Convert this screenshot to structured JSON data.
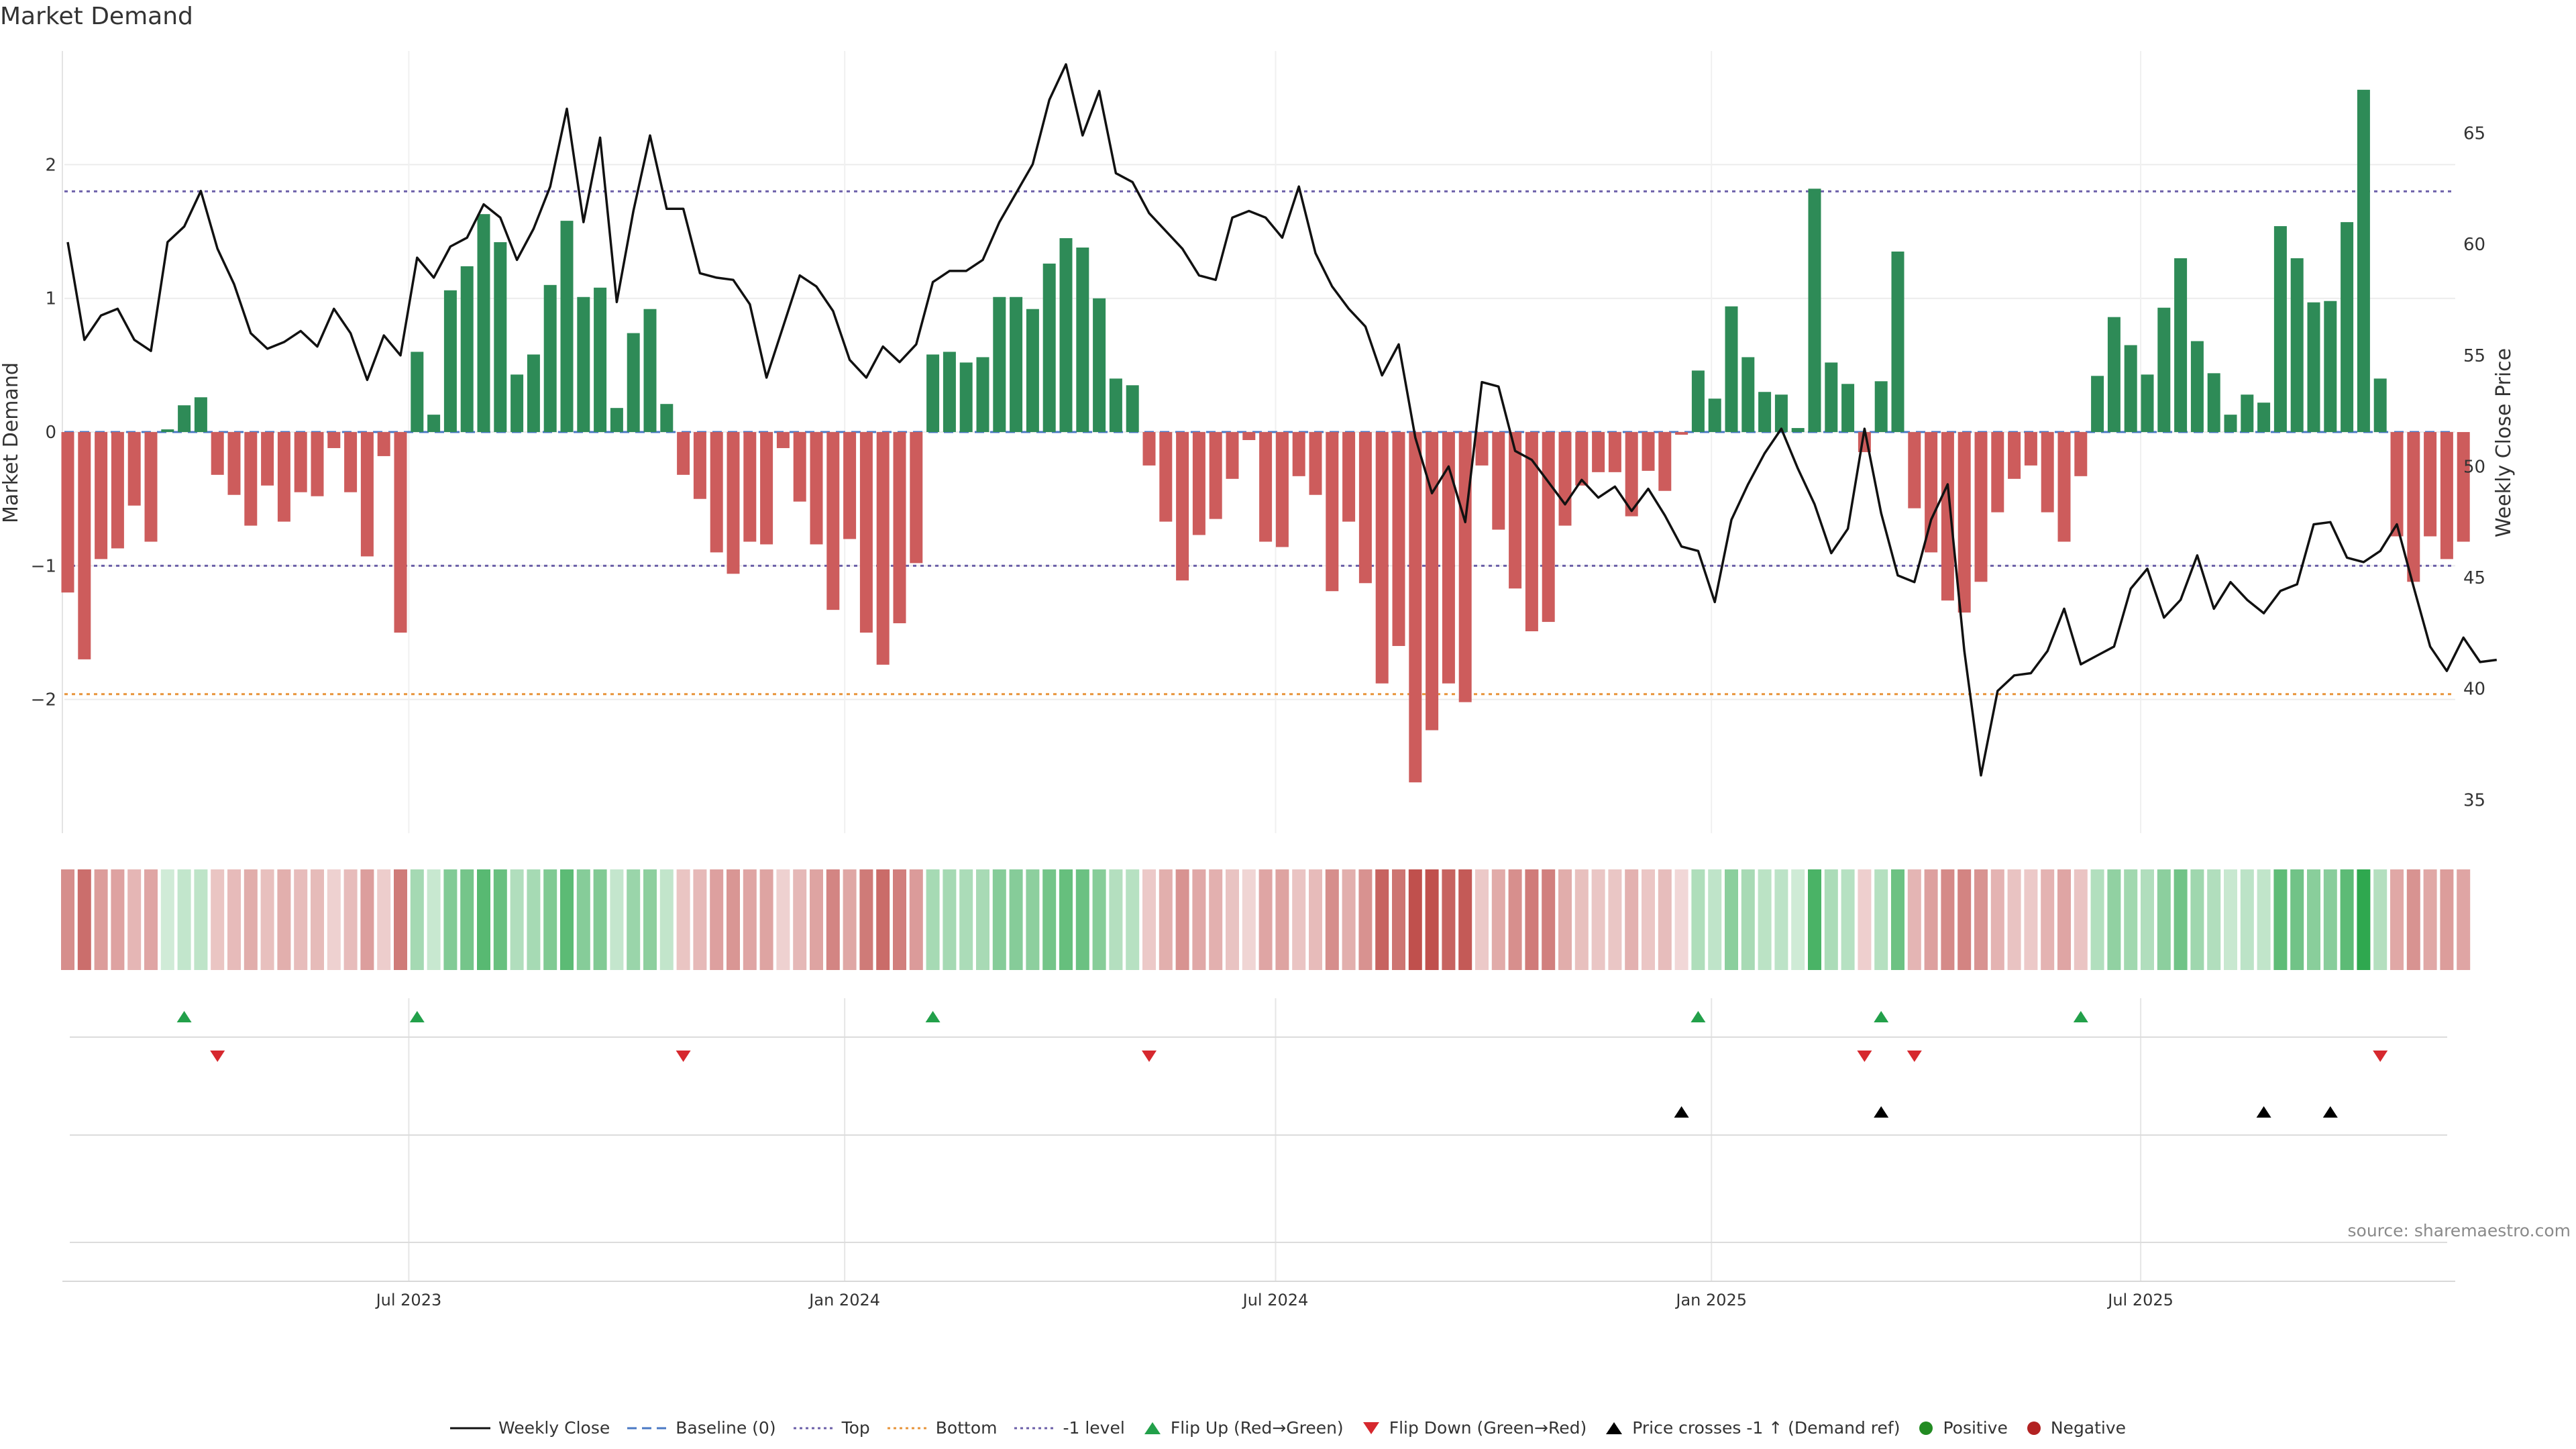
{
  "chart_data": {
    "type": "bar",
    "title": "Market Demand",
    "ylabel_left": "Market Demand",
    "ylabel_right": "Weekly Close Price",
    "y_left_range": [
      -3.0,
      2.85
    ],
    "y_left_ticks": [
      {
        "v": 2,
        "label": "2"
      },
      {
        "v": 1,
        "label": "1"
      },
      {
        "v": 0,
        "label": "0"
      },
      {
        "v": -1,
        "label": "−1"
      },
      {
        "v": -2,
        "label": "−2"
      }
    ],
    "y_right_range": [
      33.5,
      68.7
    ],
    "y_right_ticks": [
      {
        "v": 65,
        "label": "65"
      },
      {
        "v": 60,
        "label": "60"
      },
      {
        "v": 55,
        "label": "55"
      },
      {
        "v": 50,
        "label": "50"
      },
      {
        "v": 45,
        "label": "45"
      },
      {
        "v": 40,
        "label": "40"
      },
      {
        "v": 35,
        "label": "35"
      }
    ],
    "x_range": [
      0,
      145
    ],
    "x_ticks": [
      {
        "week": 20.5,
        "label": "Jul 2023"
      },
      {
        "week": 46.7,
        "label": "Jan 2024"
      },
      {
        "week": 72.6,
        "label": "Jul 2024"
      },
      {
        "week": 98.8,
        "label": "Jan 2025"
      },
      {
        "week": 124.6,
        "label": "Jul 2025"
      }
    ],
    "reference_lines": {
      "top": 1.8,
      "bottom": -1.96,
      "minus_one": -1.0,
      "baseline": 0
    },
    "demand": [
      -1.2,
      -1.7,
      -0.95,
      -0.87,
      -0.55,
      -0.82,
      0.02,
      0.2,
      0.26,
      -0.32,
      -0.47,
      -0.7,
      -0.4,
      -0.67,
      -0.45,
      -0.48,
      -0.12,
      -0.45,
      -0.93,
      -0.18,
      -1.5,
      0.6,
      0.13,
      1.06,
      1.24,
      1.63,
      1.42,
      0.43,
      0.58,
      1.1,
      1.58,
      1.01,
      1.08,
      0.18,
      0.74,
      0.92,
      0.21,
      -0.32,
      -0.5,
      -0.9,
      -1.06,
      -0.82,
      -0.84,
      -0.12,
      -0.52,
      -0.84,
      -1.33,
      -0.8,
      -1.5,
      -1.74,
      -1.43,
      -0.98,
      0.58,
      0.6,
      0.52,
      0.56,
      1.01,
      1.01,
      0.92,
      1.26,
      1.45,
      1.38,
      1.0,
      0.4,
      0.35,
      -0.25,
      -0.67,
      -1.11,
      -0.77,
      -0.65,
      -0.35,
      -0.06,
      -0.82,
      -0.86,
      -0.33,
      -0.47,
      -1.19,
      -0.67,
      -1.13,
      -1.88,
      -1.6,
      -2.62,
      -2.23,
      -1.88,
      -2.02,
      -0.25,
      -0.73,
      -1.17,
      -1.49,
      -1.42,
      -0.7,
      -0.4,
      -0.3,
      -0.3,
      -0.63,
      -0.29,
      -0.44,
      -0.02,
      0.46,
      0.25,
      0.94,
      0.56,
      0.3,
      0.28,
      0.03,
      1.82,
      0.52,
      0.36,
      -0.15,
      0.38,
      1.35,
      -0.57,
      -0.9,
      -1.26,
      -1.35,
      -1.12,
      -0.6,
      -0.35,
      -0.25,
      -0.6,
      -0.82,
      -0.33,
      0.42,
      0.86,
      0.65,
      0.43,
      0.93,
      1.3,
      0.68,
      0.44,
      0.13,
      0.28,
      0.22,
      1.54,
      1.3,
      0.97,
      0.98,
      1.57,
      2.56,
      0.4,
      -0.78,
      -1.12,
      -0.78,
      -0.95,
      -0.82
    ],
    "weekly_close": [
      60.1,
      55.7,
      56.8,
      57.1,
      55.7,
      55.2,
      60.1,
      60.8,
      62.4,
      59.8,
      58.2,
      56.0,
      55.3,
      55.6,
      56.1,
      55.4,
      57.1,
      56.0,
      53.9,
      55.9,
      55.0,
      59.4,
      58.5,
      59.9,
      60.3,
      61.8,
      61.2,
      59.3,
      60.7,
      62.6,
      66.1,
      61.0,
      64.8,
      57.4,
      61.5,
      64.9,
      61.6,
      61.6,
      58.7,
      58.5,
      58.4,
      57.3,
      54.0,
      56.3,
      58.6,
      58.1,
      57.0,
      54.8,
      54.0,
      55.4,
      54.7,
      55.5,
      58.3,
      58.8,
      58.8,
      59.3,
      61.0,
      62.3,
      63.6,
      66.5,
      68.1,
      64.9,
      66.9,
      63.2,
      62.8,
      61.4,
      60.6,
      59.8,
      58.6,
      58.4,
      61.2,
      61.5,
      61.2,
      60.3,
      62.6,
      59.6,
      58.1,
      57.1,
      56.3,
      54.1,
      55.5,
      51.3,
      48.8,
      50.0,
      47.5,
      53.8,
      53.6,
      50.7,
      50.3,
      49.3,
      48.3,
      49.4,
      48.6,
      49.1,
      48.0,
      49.0,
      47.8,
      46.4,
      46.2,
      43.9,
      47.6,
      49.2,
      50.6,
      51.7,
      49.9,
      48.3,
      46.1,
      47.2,
      51.7,
      47.9,
      45.1,
      44.8,
      47.6,
      49.2,
      41.7,
      36.1,
      39.9,
      40.6,
      40.7,
      41.7,
      43.6,
      41.1,
      41.5,
      41.9,
      44.5,
      45.4,
      43.2,
      44.0,
      46.0,
      43.6,
      44.8,
      44.0,
      43.4,
      44.4,
      44.7,
      47.4,
      47.5,
      45.9,
      45.7,
      46.2,
      47.4,
      44.6,
      41.9,
      40.8,
      42.3,
      41.2,
      41.3
    ],
    "flip_up_weeks": [
      7,
      21,
      52,
      98,
      109,
      121
    ],
    "flip_down_weeks": [
      9,
      37,
      65,
      108,
      111,
      139
    ],
    "price_cross_weeks": [
      97,
      109,
      132,
      136
    ]
  },
  "source_text": "source: sharemaestro.com",
  "colors": {
    "positive_bar": "#2e8b57",
    "negative_bar": "#cd5c5c",
    "price_line": "#111111",
    "baseline": "#4a78c4",
    "top_line": "#6b5fa8",
    "bottom_line": "#e8943a",
    "minus_one_line": "#6b5fa8",
    "flip_up": "#22a04a",
    "flip_down": "#d6282e",
    "price_cross": "#000000",
    "positive_dot": "#228b22",
    "negative_dot": "#b22222"
  },
  "legend": {
    "weekly_close": "Weekly Close",
    "baseline": "Baseline (0)",
    "top": "Top",
    "bottom": "Bottom",
    "minus_one": "-1 level",
    "flip_up": "Flip Up (Red→Green)",
    "flip_down": "Flip Down (Green→Red)",
    "price_cross": "Price crosses -1 ↑ (Demand ref)",
    "positive": "Positive",
    "negative": "Negative"
  }
}
